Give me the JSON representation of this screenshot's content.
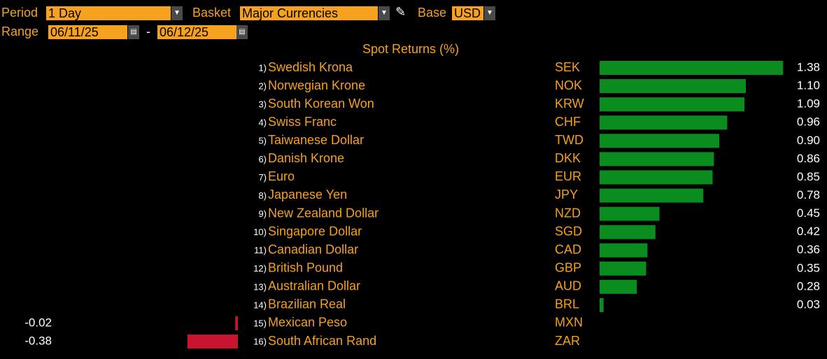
{
  "controls": {
    "period": {
      "label": "Period",
      "value": "1 Day"
    },
    "basket": {
      "label": "Basket",
      "value": "Major Currencies"
    },
    "base": {
      "label": "Base",
      "value": "USD"
    },
    "range": {
      "label": "Range",
      "from": "06/11/25",
      "separator": "-",
      "to": "06/12/25"
    }
  },
  "chart_data": {
    "type": "bar",
    "orientation": "horizontal",
    "title": "Spot Returns (%)",
    "ranks": [
      "1)",
      "2)",
      "3)",
      "4)",
      "5)",
      "6)",
      "7)",
      "8)",
      "9)",
      "10)",
      "11)",
      "12)",
      "13)",
      "14)",
      "15)",
      "16)"
    ],
    "categories": [
      "Swedish Krona",
      "Norwegian Krone",
      "South Korean Won",
      "Swiss Franc",
      "Taiwanese Dollar",
      "Danish Krone",
      "Euro",
      "Japanese Yen",
      "New Zealand Dollar",
      "Singapore Dollar",
      "Canadian Dollar",
      "British Pound",
      "Australian Dollar",
      "Brazilian Real",
      "Mexican Peso",
      "South African Rand"
    ],
    "codes": [
      "SEK",
      "NOK",
      "KRW",
      "CHF",
      "TWD",
      "DKK",
      "EUR",
      "JPY",
      "NZD",
      "SGD",
      "CAD",
      "GBP",
      "AUD",
      "BRL",
      "MXN",
      "ZAR"
    ],
    "values": [
      1.38,
      1.1,
      1.09,
      0.96,
      0.9,
      0.86,
      0.85,
      0.78,
      0.45,
      0.42,
      0.36,
      0.35,
      0.28,
      0.03,
      -0.02,
      -0.38
    ],
    "value_labels": [
      "1.38",
      "1.10",
      "1.09",
      "0.96",
      "0.90",
      "0.86",
      "0.85",
      "0.78",
      "0.45",
      "0.42",
      "0.36",
      "0.35",
      "0.28",
      "0.03",
      "-0.02",
      "-0.38"
    ],
    "colors": {
      "positive": "#0a8c1e",
      "negative": "#c8142e"
    }
  }
}
